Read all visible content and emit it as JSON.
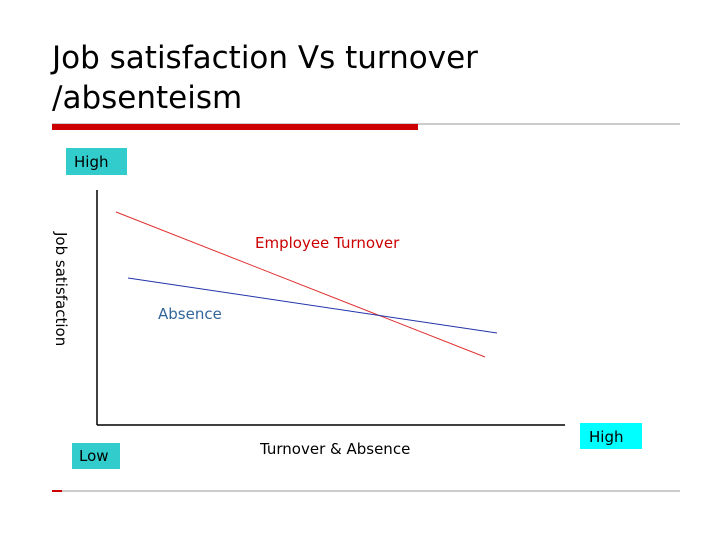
{
  "title": {
    "lines": [
      "Job satisfaction Vs  turnover",
      "/absenteism"
    ]
  },
  "axes": {
    "y_high": "High",
    "y_label": "Job satisfaction",
    "x_low": "Low",
    "x_label": "Turnover  & Absence",
    "x_high": "High"
  },
  "lines": {
    "turnover": "Employee Turnover",
    "absence": "Absence"
  }
}
